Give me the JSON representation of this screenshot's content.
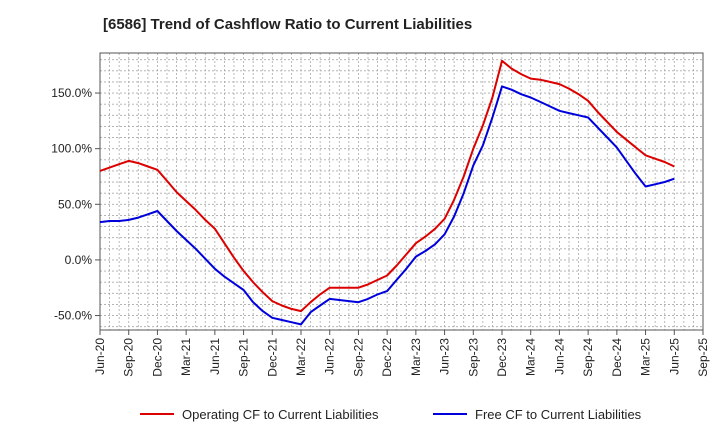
{
  "chart_data": {
    "type": "line",
    "title": "[6586]  Trend of Cashflow Ratio to Current Liabilities",
    "xlabel": "",
    "ylabel": "",
    "x": [
      "Jun-20",
      "Jul-20",
      "Aug-20",
      "Sep-20",
      "Oct-20",
      "Nov-20",
      "Dec-20",
      "Jan-21",
      "Feb-21",
      "Mar-21",
      "Apr-21",
      "May-21",
      "Jun-21",
      "Jul-21",
      "Aug-21",
      "Sep-21",
      "Oct-21",
      "Nov-21",
      "Dec-21",
      "Jan-22",
      "Feb-22",
      "Mar-22",
      "Apr-22",
      "May-22",
      "Jun-22",
      "Jul-22",
      "Aug-22",
      "Sep-22",
      "Oct-22",
      "Nov-22",
      "Dec-22",
      "Jan-23",
      "Feb-23",
      "Mar-23",
      "Apr-23",
      "May-23",
      "Jun-23",
      "Jul-23",
      "Aug-23",
      "Sep-23",
      "Oct-23",
      "Nov-23",
      "Dec-23",
      "Jan-24",
      "Feb-24",
      "Mar-24",
      "Apr-24",
      "May-24",
      "Jun-24",
      "Jul-24",
      "Aug-24",
      "Sep-24",
      "Oct-24",
      "Nov-24",
      "Dec-24",
      "Jan-25",
      "Feb-25",
      "Mar-25",
      "Apr-25",
      "May-25",
      "Jun-25"
    ],
    "x_tick_labels": [
      "Jun-20",
      "Sep-20",
      "Dec-20",
      "Mar-21",
      "Jun-21",
      "Sep-21",
      "Dec-21",
      "Mar-22",
      "Jun-22",
      "Sep-22",
      "Dec-22",
      "Mar-23",
      "Jun-23",
      "Sep-23",
      "Dec-23",
      "Mar-24",
      "Jun-24",
      "Sep-24",
      "Dec-24",
      "Mar-25",
      "Jun-25",
      "Sep-25"
    ],
    "y_ticks": [
      -50,
      0,
      50,
      100,
      150
    ],
    "y_tick_labels": [
      "-50.0%",
      "0.0%",
      "50.0%",
      "100.0%",
      "150.0%"
    ],
    "ylim": [
      -63,
      186
    ],
    "x_months_range": [
      0,
      63
    ],
    "grid": true,
    "legend": "bottom",
    "series": [
      {
        "name": "Operating CF to Current Liabilities",
        "color": "#dd0000",
        "values": [
          80,
          83,
          86,
          89,
          87,
          84,
          81,
          71,
          61,
          53,
          45,
          36,
          28,
          15,
          2,
          -10,
          -20,
          -29,
          -37,
          -41,
          -44,
          -46,
          -38,
          -31,
          -25,
          -25,
          -25,
          -25,
          -22,
          -18,
          -14,
          -5,
          5,
          15,
          21,
          28,
          37,
          54,
          75,
          100,
          121,
          146,
          179,
          172,
          167,
          163,
          162,
          160,
          158,
          154,
          149,
          143,
          133,
          124,
          115,
          108,
          101,
          94,
          91,
          88,
          84
        ]
      },
      {
        "name": "Free CF to Current Liabilities",
        "color": "#0000dd",
        "values": [
          34,
          35,
          35,
          36,
          38,
          41,
          44,
          35,
          26,
          18,
          10,
          1,
          -8,
          -15,
          -21,
          -27,
          -38,
          -46,
          -52,
          -54,
          -56,
          -58,
          -47,
          -41,
          -35,
          -36,
          -37,
          -38,
          -35,
          -31,
          -28,
          -18,
          -8,
          3,
          8,
          14,
          23,
          39,
          60,
          85,
          103,
          128,
          156,
          153,
          149,
          146,
          142,
          138,
          134,
          132,
          130,
          128,
          119,
          110,
          101,
          89,
          77,
          66,
          68,
          70,
          73
        ]
      }
    ]
  }
}
